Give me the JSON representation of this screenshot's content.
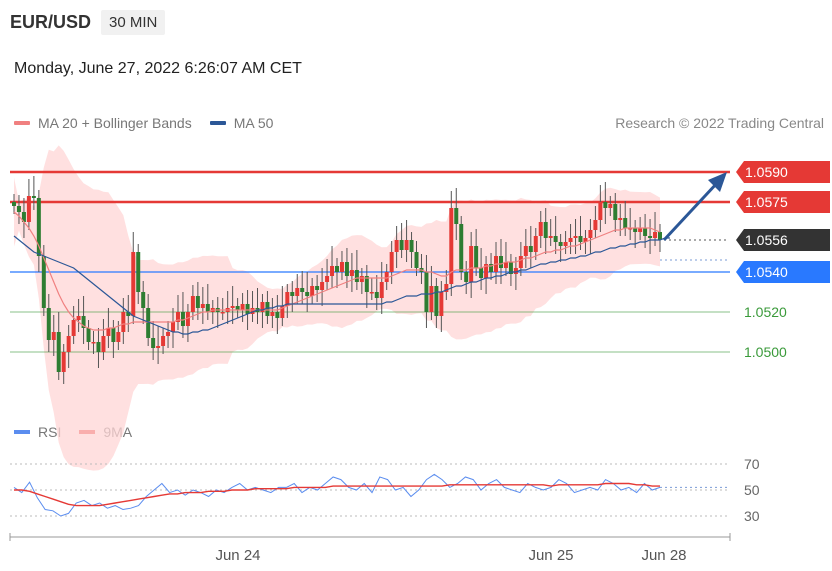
{
  "header": {
    "symbol": "EUR/USD",
    "timeframe": "30 MIN"
  },
  "datetime": "Monday, June 27, 2022 6:26:07 AM CET",
  "legend": {
    "ma20": {
      "label": "MA 20 + Bollinger Bands",
      "color": "#f08080"
    },
    "ma50": {
      "label": "MA 50",
      "color": "#2b5797"
    }
  },
  "source": "Research © 2022 Trading Central",
  "rsi_legend": {
    "rsi": {
      "label": "RSI",
      "color": "#5b8def"
    },
    "ma9": {
      "label": "9MA",
      "color": "#e53935"
    }
  },
  "colors": {
    "up": "#e53935",
    "down": "#2e7d32",
    "band": "#ffd6d6",
    "resistance": "#e53935",
    "support": "#2979ff",
    "support2": "#3a9a3a",
    "current": "#333333"
  },
  "chart_data": [
    {
      "type": "candlestick",
      "title": "EUR/USD 30 MIN",
      "ylim": [
        1.048,
        1.06
      ],
      "x_ticks": [
        "Jun 24",
        "Jun 25",
        "Jun 28"
      ],
      "levels": [
        {
          "label": "1.0590",
          "value": 1.059,
          "kind": "resistance"
        },
        {
          "label": "1.0575",
          "value": 1.0575,
          "kind": "resistance"
        },
        {
          "label": "1.0556",
          "value": 1.0556,
          "kind": "current"
        },
        {
          "label": "1.0540",
          "value": 1.054,
          "kind": "support"
        },
        {
          "label": "1.0520",
          "value": 1.052,
          "kind": "support2"
        },
        {
          "label": "1.0500",
          "value": 1.05,
          "kind": "support2"
        }
      ],
      "closes": [
        1.0573,
        1.057,
        1.0565,
        1.0578,
        1.0577,
        1.0548,
        1.0522,
        1.0506,
        1.051,
        1.049,
        1.05,
        1.0508,
        1.0516,
        1.0518,
        1.0512,
        1.0505,
        1.0505,
        1.05,
        1.0508,
        1.0512,
        1.0505,
        1.051,
        1.052,
        1.0518,
        1.055,
        1.053,
        1.0522,
        1.0507,
        1.0502,
        1.0503,
        1.0508,
        1.051,
        1.0515,
        1.052,
        1.0513,
        1.052,
        1.0528,
        1.0522,
        1.0524,
        1.052,
        1.0522,
        1.052,
        1.052,
        1.0522,
        1.0523,
        1.0521,
        1.0524,
        1.0519,
        1.0522,
        1.052,
        1.0525,
        1.0518,
        1.052,
        1.0517,
        1.0523,
        1.053,
        1.0528,
        1.0532,
        1.053,
        1.0528,
        1.0533,
        1.0531,
        1.0535,
        1.0538,
        1.0543,
        1.054,
        1.0545,
        1.0538,
        1.0541,
        1.0535,
        1.0538,
        1.053,
        1.053,
        1.0527,
        1.0535,
        1.054,
        1.055,
        1.0556,
        1.0551,
        1.0556,
        1.055,
        1.0542,
        1.054,
        1.052,
        1.0533,
        1.0518,
        1.053,
        1.0534,
        1.0572,
        1.0564,
        1.054,
        1.0535,
        1.0553,
        1.0542,
        1.0537,
        1.0544,
        1.054,
        1.0548,
        1.0542,
        1.0545,
        1.0539,
        1.0542,
        1.0548,
        1.0553,
        1.055,
        1.0558,
        1.0565,
        1.0557,
        1.0558,
        1.0555,
        1.0553,
        1.0555,
        1.0557,
        1.0558,
        1.0555,
        1.0557,
        1.0561,
        1.0566,
        1.0575,
        1.0572,
        1.0574,
        1.0566,
        1.0567,
        1.0562,
        1.0562,
        1.056,
        1.0562,
        1.0558,
        1.0557,
        1.056,
        1.0556
      ],
      "ma20": [
        1.057,
        1.0568,
        1.0565,
        1.0562,
        1.0558,
        1.0553,
        1.0547,
        1.0541,
        1.0535,
        1.0529,
        1.0524,
        1.052,
        1.0517,
        1.0515,
        1.0513,
        1.0512,
        1.0511,
        1.0511,
        1.0511,
        1.0512,
        1.0512,
        1.0513,
        1.0514,
        1.0514,
        1.0515,
        1.0515,
        1.0515,
        1.0515,
        1.0515,
        1.0515,
        1.0515,
        1.0515,
        1.0515,
        1.0516,
        1.0516,
        1.0517,
        1.0518,
        1.0519,
        1.052,
        1.052,
        1.0521,
        1.0521,
        1.0521,
        1.0521,
        1.0521,
        1.0521,
        1.0521,
        1.0521,
        1.0521,
        1.0521,
        1.0521,
        1.0521,
        1.0521,
        1.0521,
        1.0522,
        1.0523,
        1.0524,
        1.0525,
        1.0526,
        1.0527,
        1.0528,
        1.0529,
        1.053,
        1.0531,
        1.0532,
        1.0533,
        1.0534,
        1.0535,
        1.0536,
        1.0537,
        1.0537,
        1.0537,
        1.0537,
        1.0537,
        1.0537,
        1.0537,
        1.0538,
        1.0539,
        1.054,
        1.0541,
        1.0541,
        1.0541,
        1.0541,
        1.054,
        1.054,
        1.0539,
        1.0538,
        1.0538,
        1.054,
        1.0541,
        1.0541,
        1.0541,
        1.0542,
        1.0542,
        1.0542,
        1.0543,
        1.0543,
        1.0544,
        1.0544,
        1.0545,
        1.0545,
        1.0545,
        1.0546,
        1.0547,
        1.0547,
        1.0548,
        1.0549,
        1.055,
        1.055,
        1.0551,
        1.0551,
        1.0552,
        1.0553,
        1.0553,
        1.0554,
        1.0555,
        1.0556,
        1.0557,
        1.0558,
        1.0559,
        1.056,
        1.0561,
        1.0561,
        1.0562,
        1.0562,
        1.0562,
        1.0562,
        1.0562,
        1.0562,
        1.0561,
        1.056
      ],
      "ma50": [
        1.0558,
        1.0556,
        1.0554,
        1.0552,
        1.055,
        1.0549,
        1.0548,
        1.0547,
        1.0546,
        1.0545,
        1.0544,
        1.0543,
        1.0542,
        1.054,
        1.0538,
        1.0536,
        1.0534,
        1.0532,
        1.053,
        1.0528,
        1.0526,
        1.0524,
        1.0522,
        1.052,
        1.0518,
        1.0517,
        1.0516,
        1.0515,
        1.0514,
        1.0513,
        1.0512,
        1.0511,
        1.051,
        1.051,
        1.0509,
        1.0509,
        1.051,
        1.051,
        1.0511,
        1.0511,
        1.0512,
        1.0513,
        1.0514,
        1.0515,
        1.0516,
        1.0517,
        1.0518,
        1.0519,
        1.052,
        1.0521,
        1.0521,
        1.0522,
        1.0522,
        1.0523,
        1.0523,
        1.0524,
        1.0524,
        1.0524,
        1.0524,
        1.0524,
        1.0524,
        1.0524,
        1.0524,
        1.0524,
        1.0524,
        1.0524,
        1.0524,
        1.0524,
        1.0524,
        1.0524,
        1.0524,
        1.0524,
        1.0524,
        1.0524,
        1.0524,
        1.0525,
        1.0525,
        1.0526,
        1.0527,
        1.0528,
        1.0528,
        1.0528,
        1.0529,
        1.0529,
        1.0529,
        1.053,
        1.053,
        1.0531,
        1.0532,
        1.0533,
        1.0533,
        1.0534,
        1.0535,
        1.0535,
        1.0536,
        1.0537,
        1.0537,
        1.0538,
        1.0538,
        1.0539,
        1.054,
        1.054,
        1.0541,
        1.0541,
        1.0542,
        1.0543,
        1.0544,
        1.0544,
        1.0545,
        1.0545,
        1.0546,
        1.0546,
        1.0547,
        1.0547,
        1.0548,
        1.0548,
        1.0549,
        1.055,
        1.055,
        1.0551,
        1.0552,
        1.0552,
        1.0553,
        1.0553,
        1.0554,
        1.0554,
        1.0555,
        1.0555,
        1.0556,
        1.0556,
        1.0556,
        1.0557,
        1.0557
      ]
    },
    {
      "type": "line",
      "title": "RSI",
      "ylim": [
        20,
        80
      ],
      "y_ticks": [
        "70",
        "50",
        "30"
      ],
      "series": [
        {
          "name": "RSI",
          "values": [
            52,
            48,
            56,
            44,
            35,
            34,
            30,
            32,
            40,
            42,
            38,
            40,
            36,
            38,
            35,
            36,
            38,
            45,
            50,
            55,
            48,
            50,
            46,
            50,
            48,
            45,
            50,
            48,
            52,
            55,
            50,
            52,
            50,
            48,
            52,
            52,
            55,
            48,
            52,
            50,
            55,
            60,
            58,
            52,
            50,
            55,
            48,
            60,
            58,
            50,
            52,
            45,
            50,
            58,
            62,
            58,
            52,
            55,
            60,
            58,
            50,
            55,
            58,
            52,
            50,
            48,
            55,
            52,
            50,
            52,
            58,
            55,
            48,
            50,
            52,
            50,
            58,
            55,
            50,
            52,
            48,
            55,
            50,
            52
          ]
        },
        {
          "name": "9MA",
          "values": [
            50,
            50,
            49,
            47,
            45,
            43,
            41,
            39,
            38,
            38,
            38,
            38,
            39,
            40,
            41,
            42,
            43,
            44,
            45,
            46,
            47,
            47,
            48,
            48,
            48,
            49,
            49,
            49,
            50,
            50,
            50,
            51,
            51,
            51,
            51,
            51,
            52,
            52,
            52,
            52,
            52,
            53,
            53,
            53,
            53,
            53,
            53,
            53,
            53,
            53,
            53,
            53,
            53,
            53,
            53,
            53,
            54,
            54,
            54,
            54,
            54,
            54,
            54,
            54,
            54,
            54,
            54,
            54,
            54,
            53,
            54,
            54,
            54,
            54,
            54,
            54,
            55,
            55,
            55,
            55,
            54,
            54,
            53,
            53
          ]
        }
      ]
    }
  ]
}
